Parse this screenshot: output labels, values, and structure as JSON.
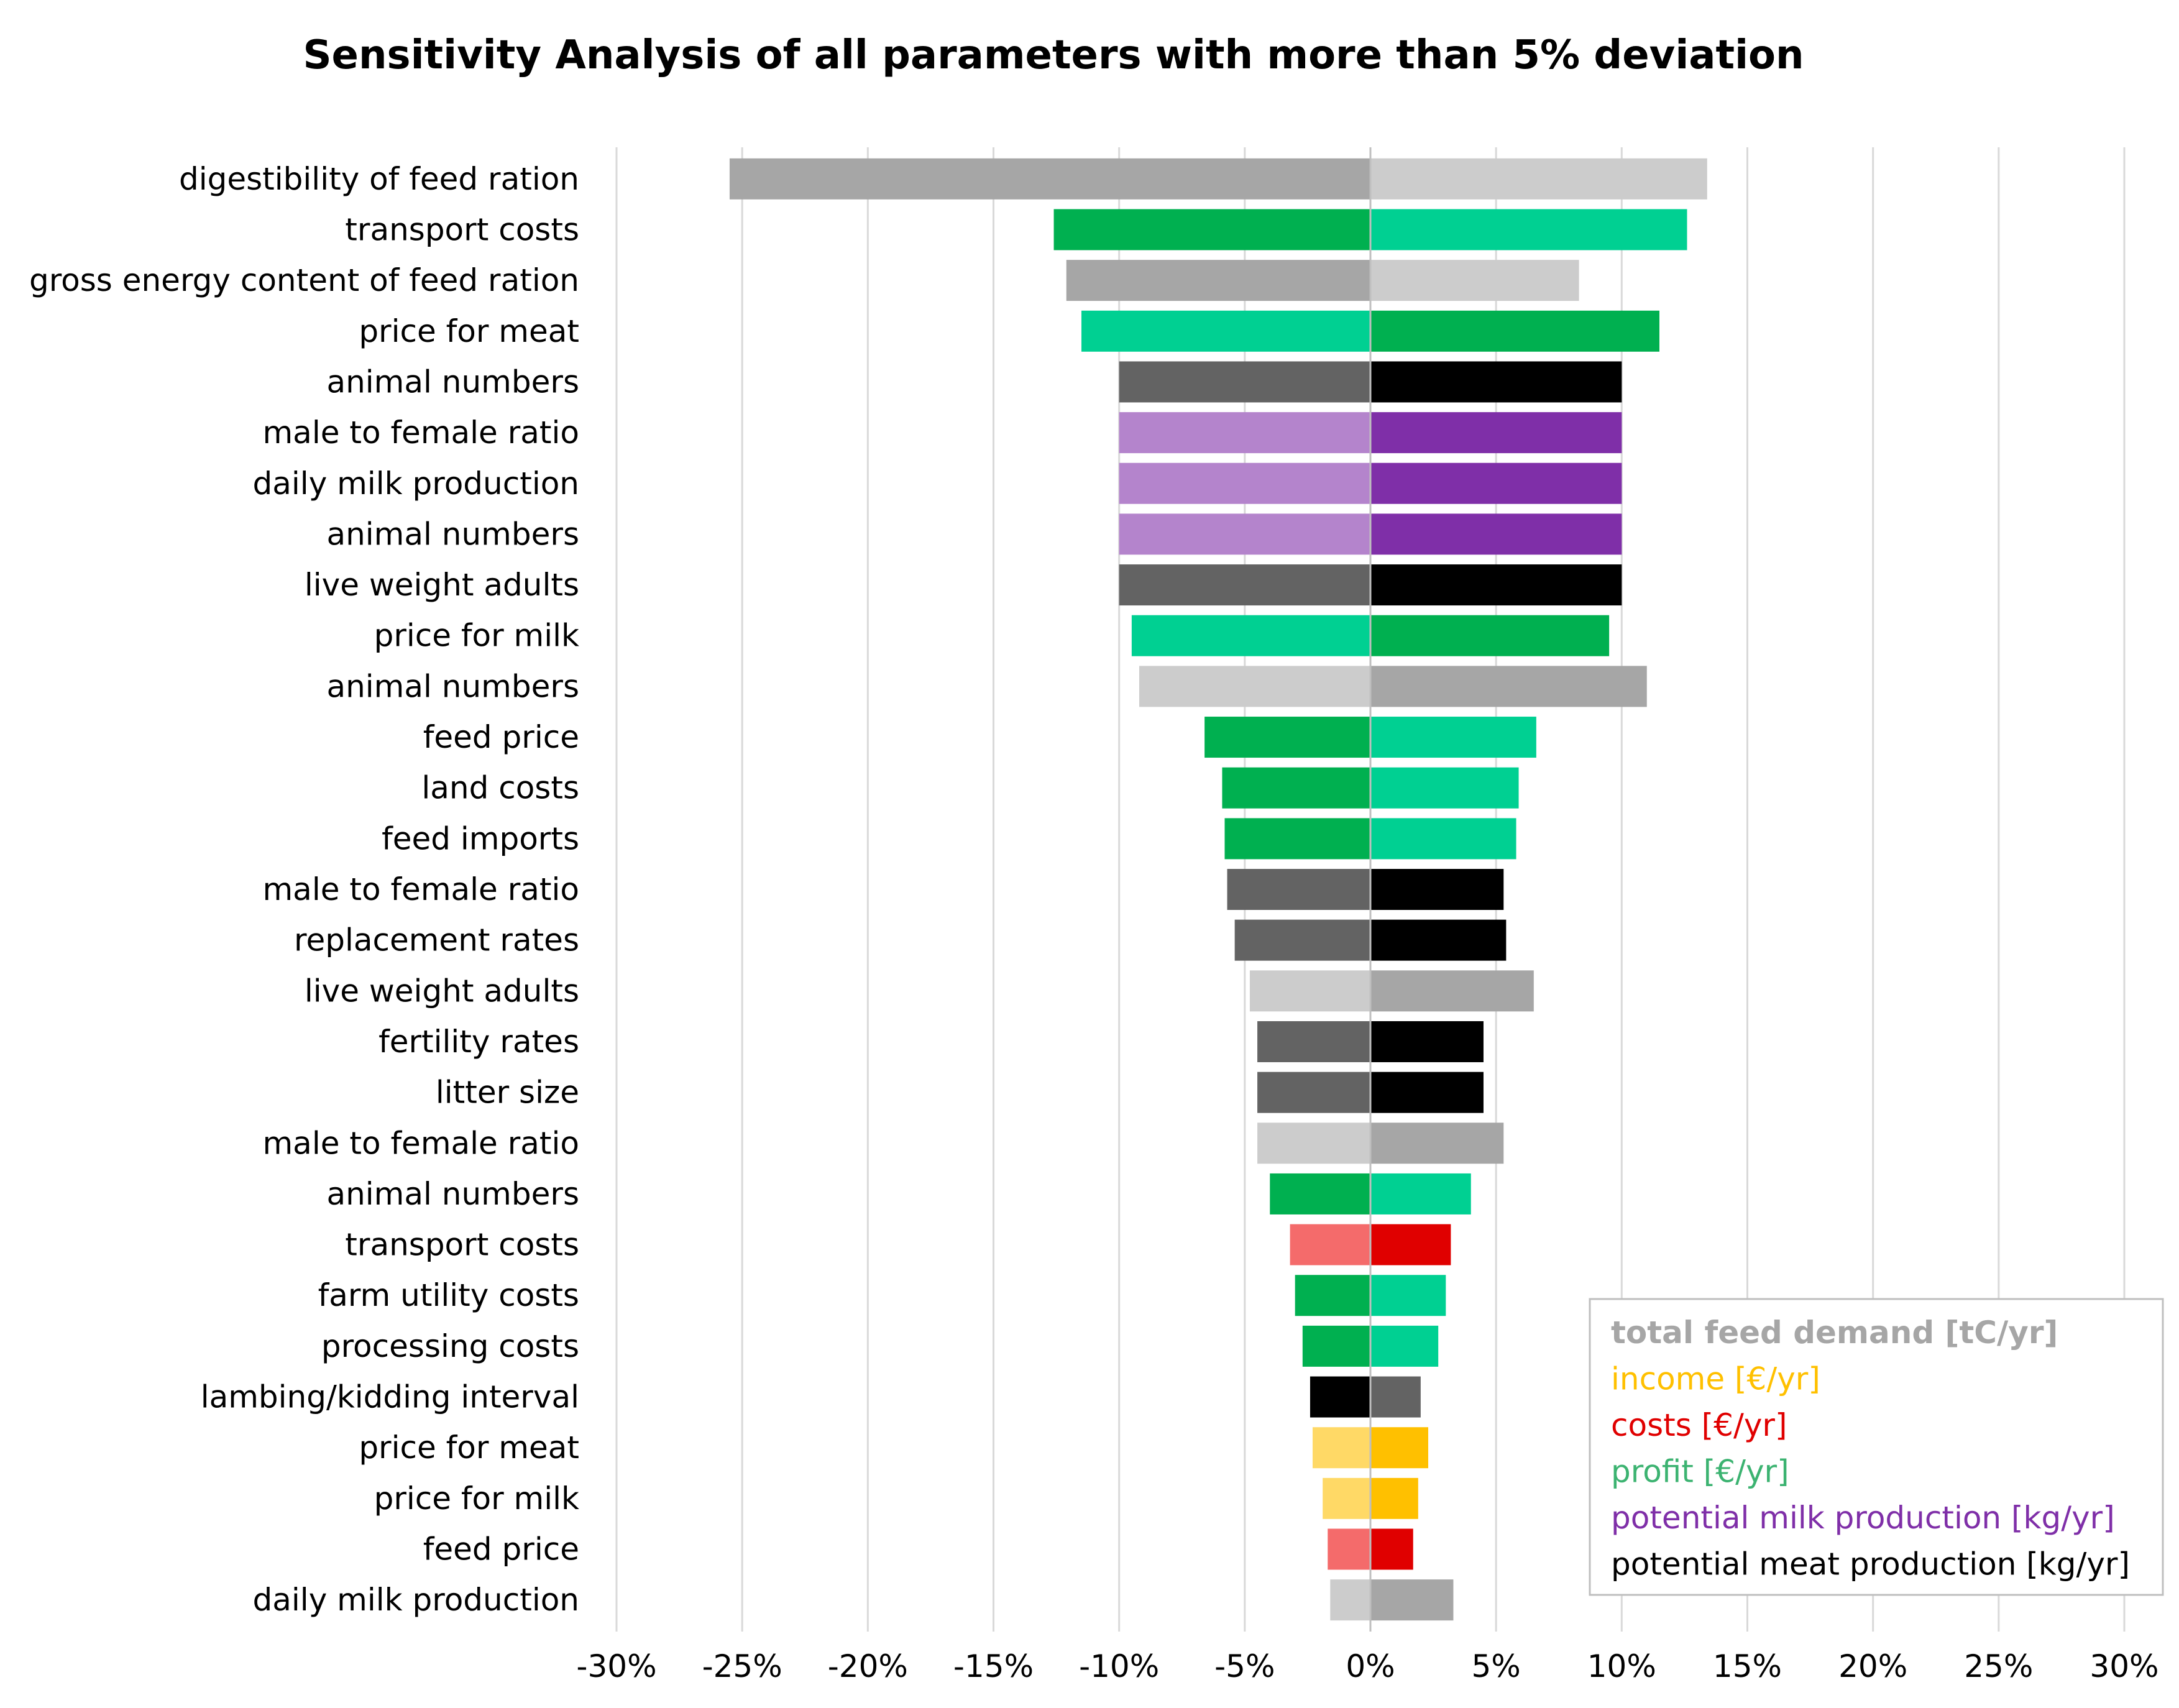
{
  "chart_data": {
    "type": "bar",
    "orientation": "horizontal-tornado",
    "title": "Sensitivity Analysis of all parameters with more than 5% deviation",
    "xlabel": "",
    "ylabel": "",
    "xlim": [
      -30,
      30
    ],
    "x_ticks": [
      -30,
      -25,
      -20,
      -15,
      -10,
      -5,
      0,
      5,
      10,
      15,
      20,
      25,
      30
    ],
    "x_tick_labels": [
      "-30%",
      "-25%",
      "-20%",
      "-15%",
      "-10%",
      "-5%",
      "0%",
      "5%",
      "10%",
      "15%",
      "20%",
      "25%",
      "30%"
    ],
    "grid": true,
    "legend_position": "bottom-right",
    "legend": [
      {
        "key": "feed",
        "label": "total feed demand [tC/yr]",
        "color": "#a6a6a6"
      },
      {
        "key": "income",
        "label": "income [€/yr]",
        "color": "#ffc000"
      },
      {
        "key": "costs",
        "label": "costs [€/yr]",
        "color": "#e00000"
      },
      {
        "key": "profit",
        "label": "profit [€/yr]",
        "color": "#3cb371"
      },
      {
        "key": "milk",
        "label": "potential milk production [kg/yr]",
        "color": "#7f2fa8"
      },
      {
        "key": "meat",
        "label": "potential meat production [kg/yr]",
        "color": "#000000"
      }
    ],
    "bars": [
      {
        "label": "digestibility of feed ration",
        "low": -25.5,
        "high": 13.4,
        "low_color": "#a6a6a6",
        "high_color": "#cccccc",
        "output": "feed"
      },
      {
        "label": "transport costs",
        "low": -12.6,
        "high": 12.6,
        "low_color": "#00b050",
        "high_color": "#00d092",
        "output": "profit"
      },
      {
        "label": "gross energy content of feed ration",
        "low": -12.1,
        "high": 8.3,
        "low_color": "#a6a6a6",
        "high_color": "#cccccc",
        "output": "feed"
      },
      {
        "label": "price for meat",
        "low": -11.5,
        "high": 11.5,
        "low_color": "#00d092",
        "high_color": "#00b050",
        "output": "profit"
      },
      {
        "label": "animal numbers",
        "low": -10.0,
        "high": 10.0,
        "low_color": "#636363",
        "high_color": "#000000",
        "output": "meat"
      },
      {
        "label": "male to female ratio",
        "low": -10.0,
        "high": 10.0,
        "low_color": "#b484cc",
        "high_color": "#7f2fa8",
        "output": "milk"
      },
      {
        "label": "daily milk production",
        "low": -10.0,
        "high": 10.0,
        "low_color": "#b484cc",
        "high_color": "#7f2fa8",
        "output": "milk"
      },
      {
        "label": "animal numbers",
        "low": -10.0,
        "high": 10.0,
        "low_color": "#b484cc",
        "high_color": "#7f2fa8",
        "output": "milk"
      },
      {
        "label": "live weight adults",
        "low": -10.0,
        "high": 10.0,
        "low_color": "#636363",
        "high_color": "#000000",
        "output": "meat"
      },
      {
        "label": "price for milk",
        "low": -9.5,
        "high": 9.5,
        "low_color": "#00d092",
        "high_color": "#00b050",
        "output": "profit"
      },
      {
        "label": "animal numbers",
        "low": -9.2,
        "high": 11.0,
        "low_color": "#cccccc",
        "high_color": "#a6a6a6",
        "output": "feed"
      },
      {
        "label": "feed price",
        "low": -6.6,
        "high": 6.6,
        "low_color": "#00b050",
        "high_color": "#00d092",
        "output": "profit"
      },
      {
        "label": "land costs",
        "low": -5.9,
        "high": 5.9,
        "low_color": "#00b050",
        "high_color": "#00d092",
        "output": "profit"
      },
      {
        "label": "feed imports",
        "low": -5.8,
        "high": 5.8,
        "low_color": "#00b050",
        "high_color": "#00d092",
        "output": "profit"
      },
      {
        "label": "male to female ratio",
        "low": -5.7,
        "high": 5.3,
        "low_color": "#636363",
        "high_color": "#000000",
        "output": "meat"
      },
      {
        "label": "replacement rates",
        "low": -5.4,
        "high": 5.4,
        "low_color": "#636363",
        "high_color": "#000000",
        "output": "meat"
      },
      {
        "label": "live weight adults",
        "low": -4.8,
        "high": 6.5,
        "low_color": "#cccccc",
        "high_color": "#a6a6a6",
        "output": "feed"
      },
      {
        "label": "fertility rates",
        "low": -4.5,
        "high": 4.5,
        "low_color": "#636363",
        "high_color": "#000000",
        "output": "meat"
      },
      {
        "label": "litter size",
        "low": -4.5,
        "high": 4.5,
        "low_color": "#636363",
        "high_color": "#000000",
        "output": "meat"
      },
      {
        "label": "male to female ratio",
        "low": -4.5,
        "high": 5.3,
        "low_color": "#cccccc",
        "high_color": "#a6a6a6",
        "output": "feed"
      },
      {
        "label": "animal numbers",
        "low": -4.0,
        "high": 4.0,
        "low_color": "#00b050",
        "high_color": "#00d092",
        "output": "profit"
      },
      {
        "label": "transport costs",
        "low": -3.2,
        "high": 3.2,
        "low_color": "#f46b6b",
        "high_color": "#e00000",
        "output": "costs"
      },
      {
        "label": "farm utility costs",
        "low": -3.0,
        "high": 3.0,
        "low_color": "#00b050",
        "high_color": "#00d092",
        "output": "profit"
      },
      {
        "label": "processing costs",
        "low": -2.7,
        "high": 2.7,
        "low_color": "#00b050",
        "high_color": "#00d092",
        "output": "profit"
      },
      {
        "label": "lambing/kidding interval",
        "low": -2.4,
        "high": 2.0,
        "low_color": "#000000",
        "high_color": "#636363",
        "output": "meat"
      },
      {
        "label": "price for meat",
        "low": -2.3,
        "high": 2.3,
        "low_color": "#ffd966",
        "high_color": "#ffc000",
        "output": "income"
      },
      {
        "label": "price for milk",
        "low": -1.9,
        "high": 1.9,
        "low_color": "#ffd966",
        "high_color": "#ffc000",
        "output": "income"
      },
      {
        "label": "feed price",
        "low": -1.7,
        "high": 1.7,
        "low_color": "#f46b6b",
        "high_color": "#e00000",
        "output": "costs"
      },
      {
        "label": "daily milk production",
        "low": -1.6,
        "high": 3.3,
        "low_color": "#cccccc",
        "high_color": "#a6a6a6",
        "output": "feed"
      }
    ]
  }
}
